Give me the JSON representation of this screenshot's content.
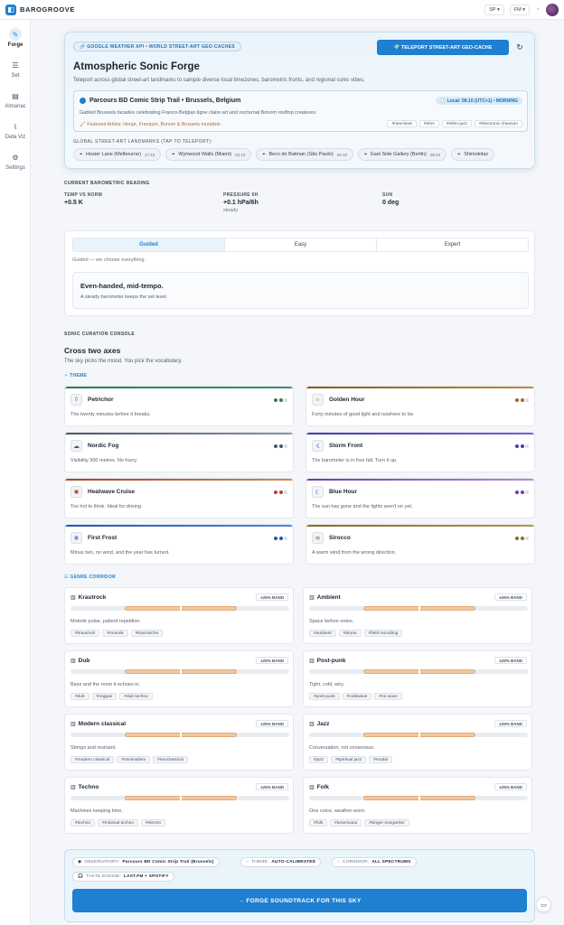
{
  "app": {
    "brand": "BAROGROOVE",
    "logo_glyph": "◧",
    "avatar_icon": "user-avatar"
  },
  "topbar": {
    "select1": "SP ▾",
    "select2": "FM ▾",
    "sep": "•"
  },
  "sidebar": [
    {
      "label": "Forge",
      "icon": "compass-icon",
      "glyph": "✎",
      "active": true
    },
    {
      "label": "Set",
      "icon": "sliders-icon",
      "glyph": "☰",
      "active": false
    },
    {
      "label": "Almanac",
      "icon": "book-icon",
      "glyph": "▤",
      "active": false
    },
    {
      "label": "Data Viz",
      "icon": "chart-icon",
      "glyph": "⌇",
      "active": false
    },
    {
      "label": "Settings",
      "icon": "gear-icon",
      "glyph": "⚙",
      "active": false
    }
  ],
  "hero": {
    "api_pill": "🔗 GOOGLE WEATHER API • WORLD STREET-ART GEO-CACHES",
    "teleport_label": "🌍 TELEPORT STREET-ART GEO-CACHE",
    "refresh_glyph": "↻",
    "title": "Atmospheric Sonic Forge",
    "subtitle": "Teleport across global street-art landmarks to sample diverse local timezones, barometric fronts, and regional sonic vibes.",
    "location": {
      "title": "Parcours BD Comic Strip Trail • Brussels, Belgium",
      "local_time": "🕓 Local: 08:10 (UTC+1) • MORNING",
      "description": "Gabled Brussels facades celebrating Franco-Belgian ligne claire art and nocturnal Bonom rooftop creatures.",
      "artists": "🖌 Featured Artists: Hergé, Franquin, Bonom & Brussels muralists",
      "tags": [
        "#new-beat",
        "#ebm",
        "#ethio-jazz",
        "#electronic-chanson"
      ]
    },
    "landmarks_label": "GLOBAL STREET-ART LANDMARKS (TAP TO TELEPORT):",
    "landmarks": [
      {
        "name": "Hosier Lane (Melbourne)",
        "time": "17:10"
      },
      {
        "name": "Wynwood Walls (Miami)",
        "time": "02:10"
      },
      {
        "name": "Beco do Batman (São Paulo)",
        "time": "04:10"
      },
      {
        "name": "East Side Gallery (Berlin)",
        "time": "08:10"
      },
      {
        "name": "Shimokitaz",
        "time": ""
      }
    ]
  },
  "reading": {
    "label": "CURRENT BAROMETRIC READING",
    "items": [
      {
        "key": "TEMP VS NORM",
        "value": "+0.5 K",
        "sub": ""
      },
      {
        "key": "PRESSURE 6H",
        "value": "+0.1 hPa/6h",
        "sub": "steady"
      },
      {
        "key": "SUN",
        "value": "0 deg",
        "sub": ""
      }
    ]
  },
  "mode": {
    "tabs": [
      "Guided",
      "Easy",
      "Expert"
    ],
    "active": 0,
    "note": "Guided — we choose everything.",
    "tempo_title": "Even-handed, mid-tempo.",
    "tempo_sub": "A steady barometer keeps the set level."
  },
  "console": {
    "label": "SONIC CURATION CONSOLE",
    "title": "Cross two axes",
    "subtitle": "The sky picks the mood. You pick the vocabulary.",
    "theme_label": "✧ THEME",
    "genre_label": "☷ GENRE CORRIDOR"
  },
  "themes": [
    {
      "name": "Petrichor",
      "desc": "The twenty minutes before it breaks.",
      "glyph": "◊",
      "icon": "droplet-icon",
      "c1": "#2f7d4f",
      "c2": "#3d8f7a",
      "dot": "#2f7d4f"
    },
    {
      "name": "Golden Hour",
      "desc": "Forty minutes of good light and nowhere to be.",
      "glyph": "☼",
      "icon": "sunset-icon",
      "c1": "#8a5a1f",
      "c2": "#c08a3a",
      "dot": "#a06a20"
    },
    {
      "name": "Nordic Fog",
      "desc": "Visibility 300 metres. No hurry.",
      "glyph": "☁",
      "icon": "fog-icon",
      "c1": "#4a5568",
      "c2": "#8a94a6",
      "dot": "#4a5568"
    },
    {
      "name": "Storm Front",
      "desc": "The barometer is in free fall. Turn it up.",
      "glyph": "☇",
      "icon": "storm-icon",
      "c1": "#3b3fa8",
      "c2": "#7b5fd6",
      "dot": "#4a3fb0"
    },
    {
      "name": "Heatwave Cruise",
      "desc": "Too hot to think. Ideal for driving.",
      "glyph": "✺",
      "icon": "sun-icon",
      "c1": "#a8442b",
      "c2": "#d08850",
      "dot": "#b0462c"
    },
    {
      "name": "Blue Hour",
      "desc": "The sun has gone and the lights aren't on yet.",
      "glyph": "☾",
      "icon": "moon-icon",
      "c1": "#6a3fb0",
      "c2": "#b58ad6",
      "dot": "#6a3fb0"
    },
    {
      "name": "First Frost",
      "desc": "Minus two, no wind, and the year has turned.",
      "glyph": "❄",
      "icon": "snowflake-icon",
      "c1": "#2a55b0",
      "c2": "#4a8ad6",
      "dot": "#2a55b0"
    },
    {
      "name": "Sirocco",
      "desc": "A warm wind from the wrong direction.",
      "glyph": "≋",
      "icon": "wind-icon",
      "c1": "#8a6a2a",
      "c2": "#b8944a",
      "dot": "#8a6a2a"
    }
  ],
  "genres": [
    {
      "name": "Krautrock",
      "band": "±25% BAND",
      "desc": "Motorik pulse, patient repetition.",
      "tags": [
        "#krautrock",
        "#motorik",
        "#kosmische"
      ]
    },
    {
      "name": "Ambient",
      "band": "±25% BAND",
      "desc": "Space before notes.",
      "tags": [
        "#ambient",
        "#drone",
        "#field recording"
      ]
    },
    {
      "name": "Dub",
      "band": "±25% BAND",
      "desc": "Bass and the room it echoes in.",
      "tags": [
        "#dub",
        "#reggae",
        "#dub techno"
      ]
    },
    {
      "name": "Post-punk",
      "band": "±25% BAND",
      "desc": "Tight, cold, wiry.",
      "tags": [
        "#post-punk",
        "#coldwave",
        "#no wave"
      ]
    },
    {
      "name": "Modern classical",
      "band": "±25% BAND",
      "desc": "Strings and restraint.",
      "tags": [
        "#modern classical",
        "#minimalism",
        "#neoclassical"
      ]
    },
    {
      "name": "Jazz",
      "band": "±25% BAND",
      "desc": "Conversation, not consensus.",
      "tags": [
        "#jazz",
        "#spiritual jazz",
        "#modal"
      ]
    },
    {
      "name": "Techno",
      "band": "±25% BAND",
      "desc": "Machines keeping time.",
      "tags": [
        "#techno",
        "#minimal techno",
        "#electro"
      ]
    },
    {
      "name": "Folk",
      "band": "±25% BAND",
      "desc": "One voice, weather-worn.",
      "tags": [
        "#folk",
        "#americana",
        "#singer-songwriter"
      ]
    }
  ],
  "bottom": {
    "chips": [
      {
        "label": "OBSERVATORY:",
        "value": "Parcours BD Comic Strip Trail (Brussels)",
        "glyph": "◉"
      },
      {
        "label": "THEME:",
        "value": "AUTO-CALIBRATED",
        "glyph": "◌"
      },
      {
        "label": "CORRIDOR:",
        "value": "ALL SPECTRUMS",
        "glyph": "◌"
      },
      {
        "label": "TASTE ENGINE:",
        "value": "LAST.FM + SPOTIFY",
        "glyph": "🎧"
      }
    ],
    "forge_label": "→ FORGE SOUNDTRACK FOR THIS SKY",
    "chat_glyph": "▭"
  }
}
